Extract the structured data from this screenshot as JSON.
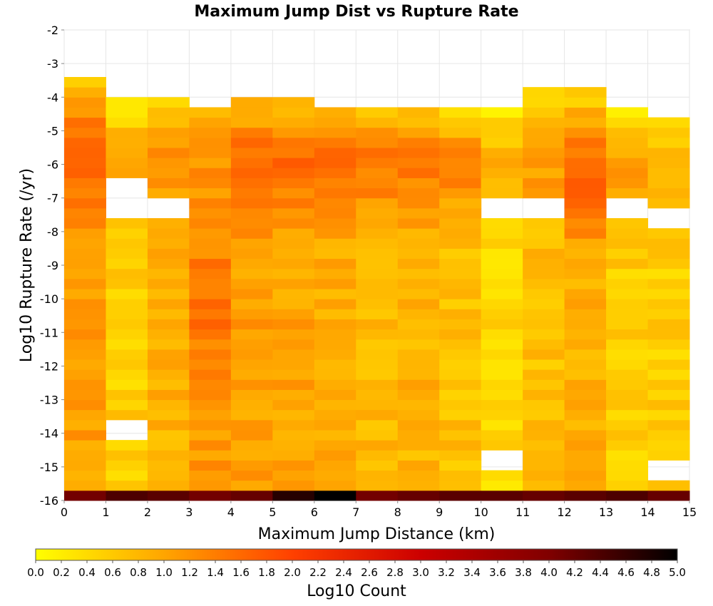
{
  "chart_data": {
    "type": "heatmap",
    "title": "Maximum Jump Dist vs Rupture Rate",
    "xlabel": "Maximum Jump Distance (km)",
    "ylabel": "Log10 Rupture Rate (/yr)",
    "xlim": [
      0,
      15
    ],
    "ylim": [
      -16,
      -2
    ],
    "xticks": [
      "0",
      "1",
      "2",
      "3",
      "4",
      "5",
      "6",
      "7",
      "8",
      "9",
      "10",
      "11",
      "12",
      "13",
      "14",
      "15"
    ],
    "yticks": [
      "-2",
      "-3",
      "-4",
      "-5",
      "-6",
      "-7",
      "-8",
      "-9",
      "-10",
      "-11",
      "-12",
      "-13",
      "-14",
      "-15",
      "-16"
    ],
    "x_bin_width": 1,
    "y_bin_height": 0.3,
    "y_bin_start": -16,
    "grid": true,
    "colorbar": {
      "label": "Log10 Count",
      "range": [
        0,
        5
      ],
      "ticks": [
        "0.0",
        "0.2",
        "0.4",
        "0.6",
        "0.8",
        "1.0",
        "1.2",
        "1.4",
        "1.6",
        "1.8",
        "2.0",
        "2.2",
        "2.4",
        "2.6",
        "2.8",
        "3.0",
        "3.2",
        "3.4",
        "3.6",
        "3.8",
        "4.0",
        "4.2",
        "4.4",
        "4.6",
        "4.8",
        "5.0"
      ],
      "colors": [
        "#ffff00",
        "#ffa500",
        "#ff4000",
        "#cc0000",
        "#800000",
        "#000000"
      ]
    },
    "top_row_log10_count": [
      4.1,
      4.4,
      4.3,
      4.1,
      4.2,
      4.7,
      5.0,
      4.1,
      4.2,
      4.3,
      4.3,
      4.2,
      4.3,
      4.4,
      4.2
    ],
    "columns": [
      {
        "x": 0,
        "top_bin_upper": -3.55,
        "peak_center": -5.8,
        "mean": 1.05,
        "amp": 0.55,
        "empty_bins": []
      },
      {
        "x": 1,
        "top_bin_upper": -4.15,
        "peak_center": -5.8,
        "mean": 0.55,
        "amp": 0.4,
        "empty_bins": [
          -13.9,
          -7.3,
          -6.7
        ]
      },
      {
        "x": 2,
        "top_bin_upper": -4.15,
        "peak_center": -5.8,
        "mean": 0.85,
        "amp": 0.4,
        "empty_bins": [
          -7.3
        ]
      },
      {
        "x": 3,
        "top_bin_upper": -4.45,
        "peak_center": -10.1,
        "mean": 1.15,
        "amp": 0.4,
        "empty_bins": []
      },
      {
        "x": 4,
        "top_bin_upper": -4.15,
        "peak_center": -6.0,
        "mean": 1.05,
        "amp": 0.5,
        "empty_bins": []
      },
      {
        "x": 5,
        "top_bin_upper": -4.15,
        "peak_center": -6.0,
        "mean": 1.0,
        "amp": 0.55,
        "empty_bins": []
      },
      {
        "x": 6,
        "top_bin_upper": -4.45,
        "peak_center": -6.1,
        "mean": 0.9,
        "amp": 0.7,
        "empty_bins": []
      },
      {
        "x": 7,
        "top_bin_upper": -4.45,
        "peak_center": -6.0,
        "mean": 0.8,
        "amp": 0.6,
        "empty_bins": []
      },
      {
        "x": 8,
        "top_bin_upper": -4.45,
        "peak_center": -6.0,
        "mean": 0.85,
        "amp": 0.55,
        "empty_bins": []
      },
      {
        "x": 9,
        "top_bin_upper": -4.45,
        "peak_center": -6.0,
        "mean": 0.7,
        "amp": 0.6,
        "empty_bins": []
      },
      {
        "x": 10,
        "top_bin_upper": -4.45,
        "peak_center": -6.0,
        "mean": 0.45,
        "amp": 0.45,
        "empty_bins": [
          -14.8,
          -7.3
        ]
      },
      {
        "x": 11,
        "top_bin_upper": -3.85,
        "peak_center": -6.0,
        "mean": 0.7,
        "amp": 0.4,
        "empty_bins": [
          -7.3
        ]
      },
      {
        "x": 12,
        "top_bin_upper": -3.85,
        "peak_center": -6.4,
        "mean": 0.9,
        "amp": 0.75,
        "empty_bins": []
      },
      {
        "x": 13,
        "top_bin_upper": -4.45,
        "peak_center": -6.0,
        "mean": 0.55,
        "amp": 0.5,
        "empty_bins": [
          -7.3
        ]
      },
      {
        "x": 14,
        "top_bin_upper": -4.75,
        "peak_center": -6.0,
        "mean": 0.55,
        "amp": 0.4,
        "empty_bins": [
          -15.1,
          -7.6
        ]
      }
    ]
  }
}
